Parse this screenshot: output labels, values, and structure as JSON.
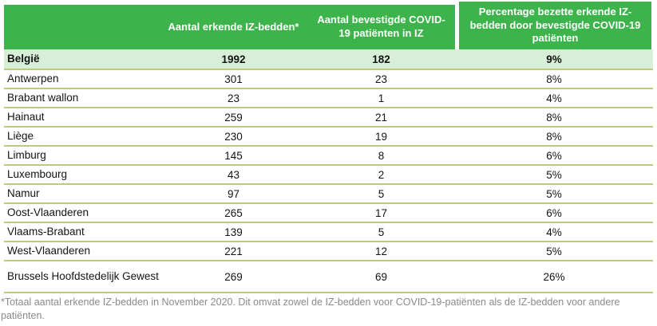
{
  "table": {
    "columns": [
      "",
      "Aantal erkende IZ-bedden*",
      "Aantal bevestigde COVID-19 patiënten in IZ",
      "Percentage bezette erkende IZ-bedden door bevestigde COVID-19 patiënten"
    ],
    "total_row": {
      "label": "België",
      "beds": "1992",
      "patients": "182",
      "pct": "9%"
    },
    "rows": [
      {
        "label": "Antwerpen",
        "beds": "301",
        "patients": "23",
        "pct": "8%"
      },
      {
        "label": "Brabant wallon",
        "beds": "23",
        "patients": "1",
        "pct": "4%"
      },
      {
        "label": "Hainaut",
        "beds": "259",
        "patients": "21",
        "pct": "8%"
      },
      {
        "label": "Liège",
        "beds": "230",
        "patients": "19",
        "pct": "8%"
      },
      {
        "label": "Limburg",
        "beds": "145",
        "patients": "8",
        "pct": "6%"
      },
      {
        "label": "Luxembourg",
        "beds": "43",
        "patients": "2",
        "pct": "5%"
      },
      {
        "label": "Namur",
        "beds": "97",
        "patients": "5",
        "pct": "5%"
      },
      {
        "label": "Oost-Vlaanderen",
        "beds": "265",
        "patients": "17",
        "pct": "6%"
      },
      {
        "label": "Vlaams-Brabant",
        "beds": "139",
        "patients": "5",
        "pct": "4%"
      },
      {
        "label": "West-Vlaanderen",
        "beds": "221",
        "patients": "12",
        "pct": "5%"
      },
      {
        "label": "Brussels Hoofdstedelijk Gewest",
        "beds": "269",
        "patients": "69",
        "pct": "26%"
      }
    ]
  },
  "footnote": "*Totaal aantal erkende IZ-bedden in November 2020. Dit omvat zowel de IZ-bedden voor COVID-19-patiënten als de IZ-bedden voor andere patiënten.",
  "colors": {
    "header_green": "#3cb44b",
    "total_row_bg": "#d7efd7",
    "divider": "#bece6b",
    "footnote_gray": "#8a8a8a"
  }
}
